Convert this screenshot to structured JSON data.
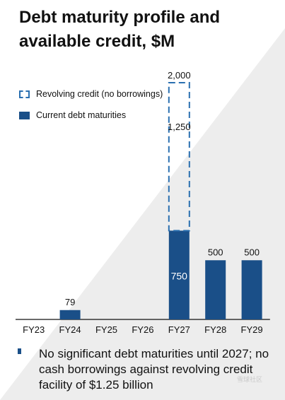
{
  "title": "Debt maturity profile and available credit, $M",
  "legend": {
    "revolving_label": "Revolving credit (no borrowings)",
    "debt_label": "Current debt maturities"
  },
  "colors": {
    "debt": "#1a4f88",
    "revolving": "#2a6fb0",
    "background_triangle": "#ededed"
  },
  "chart_data": {
    "type": "bar",
    "title": "Debt maturity profile and available credit, $M",
    "categories": [
      "FY23",
      "FY24",
      "FY25",
      "FY26",
      "FY27",
      "FY28",
      "FY29"
    ],
    "series": [
      {
        "name": "Current debt maturities",
        "values": [
          0,
          79,
          0,
          0,
          750,
          500,
          500
        ],
        "labels": [
          "",
          "79",
          "",
          "",
          "750",
          "500",
          "500"
        ]
      },
      {
        "name": "Revolving credit (no borrowings)",
        "values": [
          0,
          0,
          0,
          0,
          1250,
          0,
          0
        ],
        "labels": [
          "",
          "",
          "",
          "",
          "1,250",
          "",
          ""
        ]
      }
    ],
    "totals": {
      "FY27": "2,000"
    },
    "stacked": true,
    "ylim": [
      0,
      2000
    ],
    "grid": false,
    "legend_position": "top-left"
  },
  "bullet": "No significant debt maturities until 2027; no cash borrowings against revolving credit facility of $1.25 billion",
  "watermark": "雪球社区"
}
